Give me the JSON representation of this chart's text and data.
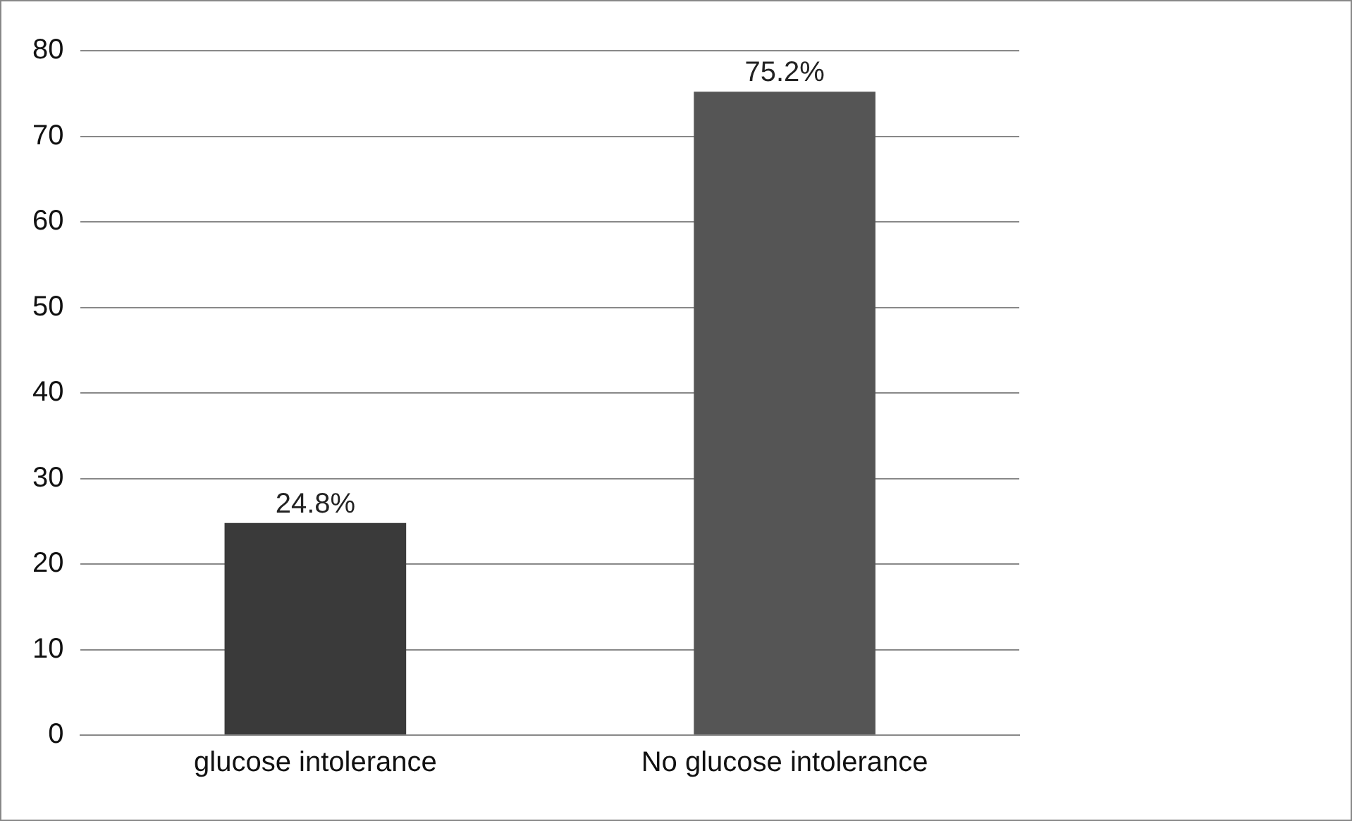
{
  "chart_data": {
    "type": "bar",
    "categories": [
      "glucose intolerance",
      "No glucose intolerance"
    ],
    "values": [
      24.8,
      75.2
    ],
    "colors": [
      "#3a3a3a",
      "#555555"
    ],
    "value_labels": [
      "24.8%",
      "75.2%"
    ],
    "ylim": [
      0,
      80
    ],
    "yticks": [
      0,
      10,
      20,
      30,
      40,
      50,
      60,
      70,
      80
    ],
    "grid": "y",
    "legend": false
  }
}
